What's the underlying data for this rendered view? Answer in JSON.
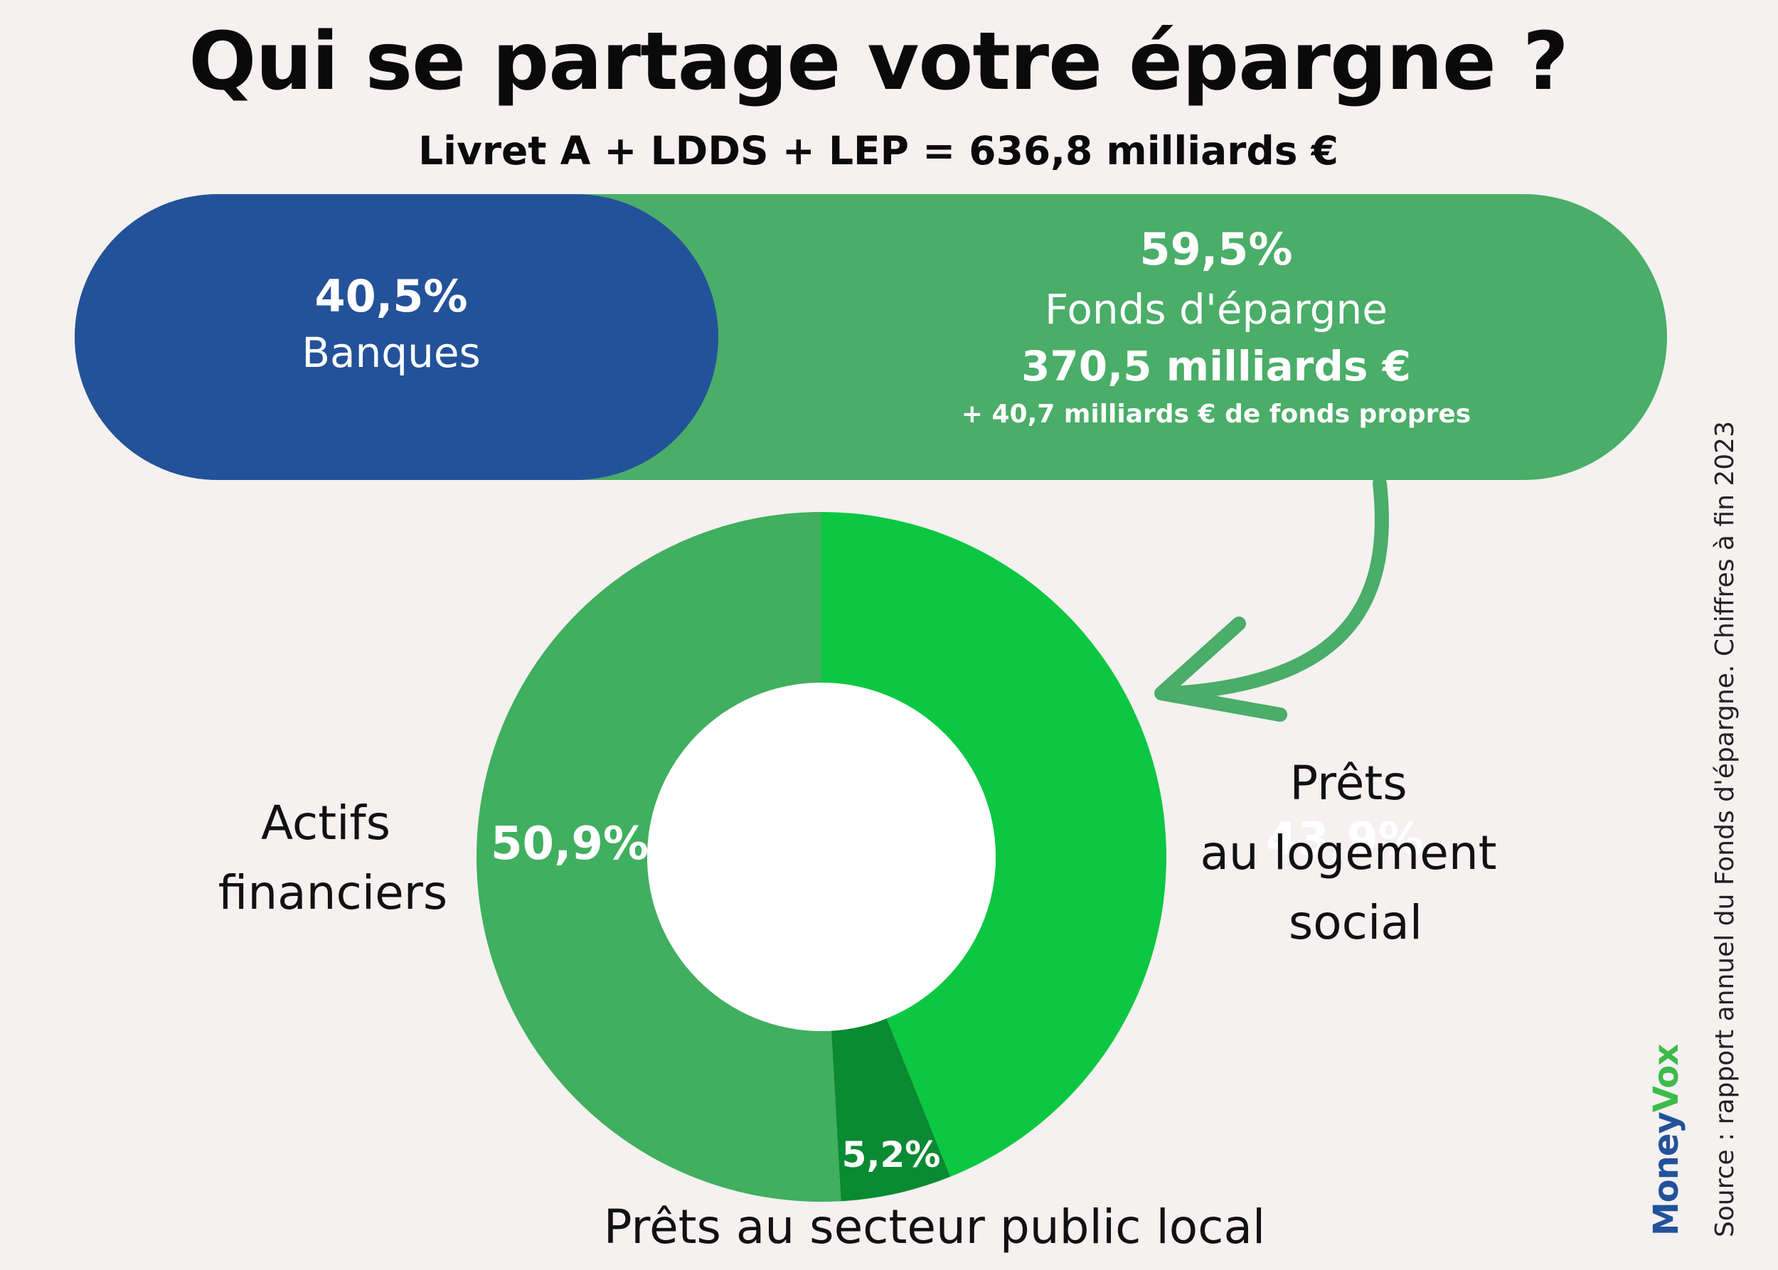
{
  "title": "Qui se partage votre épargne ?",
  "subtitle": "Livret A + LDDS + LEP = 636,8 milliards €",
  "split": {
    "banks": {
      "pct": "40,5%",
      "label": "Banques",
      "value": 40.5,
      "color": "#23529a"
    },
    "fonds": {
      "pct": "59,5%",
      "label": "Fonds d'épargne",
      "amount": "370,5 milliards €",
      "extra": "+ 40,7 milliards € de fonds propres",
      "value": 59.5,
      "color": "#4aad68"
    }
  },
  "chart_data": {
    "type": "pie",
    "categories": [
      "Prêts au logement social",
      "Prêts au secteur public local",
      "Actifs financiers"
    ],
    "values": [
      43.9,
      5.2,
      50.9
    ],
    "value_labels": [
      "43,9%",
      "5,2%",
      "50,9%"
    ],
    "colors": [
      "#0cc742",
      "#0a8a32",
      "#40af5f"
    ],
    "category_labels": {
      "logement": [
        "Prêts",
        "au logement",
        "social"
      ],
      "public": "Prêts au secteur public local",
      "actifs": [
        "Actifs",
        "financiers"
      ]
    }
  },
  "source": "Source : rapport annuel du Fonds d'épargne. Chiffres à fin 2023",
  "logo": {
    "part1": "Money",
    "part2": "Vox"
  }
}
